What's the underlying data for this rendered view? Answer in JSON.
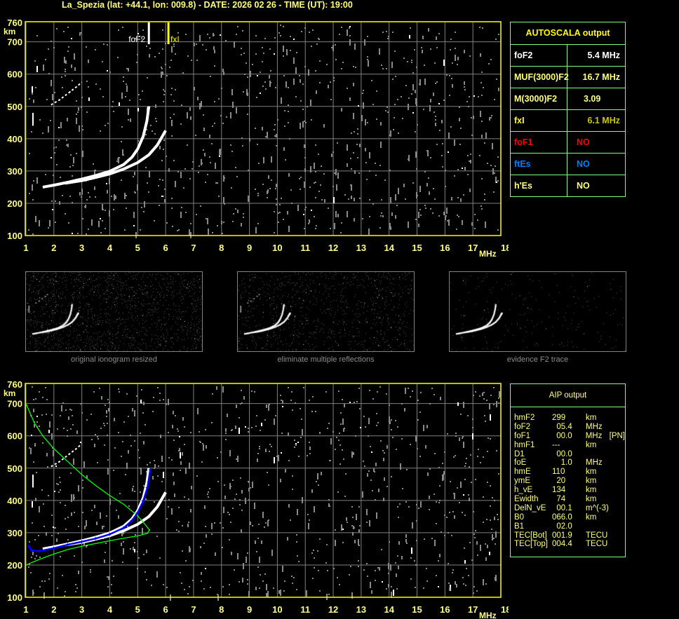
{
  "title": "La_Spezia (lat: +44.1, lon: 009.8) - DATE: 2026 02 26 - TIME (UT): 19:00",
  "colors": {
    "axis": "#ffff00",
    "grid": "#808080",
    "o_trace": "#ffffff",
    "fit": "#0000ff",
    "profile": "#00ff00",
    "panel_border": "#7fff7f",
    "label": "#ffff80",
    "red": "#ff0000",
    "blue": "#0080ff"
  },
  "autoscala": {
    "header": "AUTOSCALA output",
    "rows": [
      {
        "label": "foF2",
        "value": "5.4 MHz",
        "label_color": "#ffffff",
        "value_color": "#ffffff"
      },
      {
        "label": "MUF(3000)F2",
        "value": "16.7 MHz",
        "label_color": "#ffff80",
        "value_color": "#ffff80"
      },
      {
        "label": "M(3000)F2",
        "value": "3.09",
        "label_color": "#ffff80",
        "value_color": "#ffff80"
      },
      {
        "label": "fxI",
        "value": "6.1 MHz",
        "label_color": "#ffff00",
        "value_color": "#c8c800"
      },
      {
        "label": "foF1",
        "value": "NO",
        "label_color": "#ff0000",
        "value_color": "#ff0000"
      },
      {
        "label": "ftEs",
        "value": "NO",
        "label_color": "#0080ff",
        "value_color": "#0080ff"
      },
      {
        "label": "h'Es",
        "value": "NO",
        "label_color": "#ffff80",
        "value_color": "#ffff80"
      }
    ]
  },
  "aip": {
    "header": "AIP output",
    "rows": [
      [
        "hmF2",
        "299",
        "km",
        ""
      ],
      [
        "foF2",
        "  05.4",
        "MHz",
        ""
      ],
      [
        "foF1",
        "  00.0",
        "MHz",
        "[PN]"
      ],
      [
        "hmF1",
        "---",
        "km",
        ""
      ],
      [
        "D1",
        "  00.0",
        "",
        ""
      ],
      [
        "foE",
        "    1.0",
        "MHz",
        ""
      ],
      [
        "hmE",
        "110",
        "km",
        ""
      ],
      [
        "ymE",
        "  20",
        "km",
        ""
      ],
      [
        "h_vE",
        "134",
        "km",
        ""
      ],
      [
        "Ewidth",
        "  74",
        "km",
        ""
      ],
      [
        "DelN_vE",
        "  00.1",
        "m^(-3)",
        ""
      ],
      [
        "B0",
        "066.0",
        "km",
        ""
      ],
      [
        "B1",
        "  02.0",
        "",
        ""
      ],
      [
        "TEC[Bot]",
        "001.9",
        "TECU",
        ""
      ],
      [
        "TEC[Top]",
        "004.4",
        "TECU",
        ""
      ]
    ]
  },
  "thumbnails": [
    {
      "label": "original ionogram resized"
    },
    {
      "label": "eliminate multiple reflections"
    },
    {
      "label": "evidence F2 trace"
    }
  ],
  "chart_data": [
    {
      "type": "scatter",
      "name": "ionogram-autoscala",
      "xlabel": "MHz",
      "ylabel": "km",
      "xlim": [
        1,
        18
      ],
      "ylim": [
        100,
        760
      ],
      "xticks": [
        "1",
        "2",
        "3",
        "4",
        "5",
        "6",
        "7",
        "8",
        "9",
        "10",
        "11",
        "12",
        "13",
        "14",
        "15",
        "16",
        "17",
        "18"
      ],
      "yticks": [
        "100",
        "200",
        "300",
        "400",
        "500",
        "600",
        "700",
        "760"
      ],
      "grid": true,
      "markers": [
        {
          "label": "foF2",
          "x": 5.4,
          "color": "#ffffff"
        },
        {
          "label": "fxI",
          "x": 6.1,
          "color": "#ffff00"
        }
      ],
      "o_trace": [
        [
          1.6,
          250
        ],
        [
          2,
          256
        ],
        [
          2.5,
          265
        ],
        [
          3,
          275
        ],
        [
          3.5,
          286
        ],
        [
          4,
          299
        ],
        [
          4.5,
          320
        ],
        [
          4.8,
          343
        ],
        [
          5.0,
          368
        ],
        [
          5.2,
          408
        ],
        [
          5.33,
          455
        ],
        [
          5.4,
          500
        ]
      ],
      "x_trace": [
        [
          2.4,
          262
        ],
        [
          3,
          270
        ],
        [
          3.5,
          280
        ],
        [
          4,
          291
        ],
        [
          4.5,
          306
        ],
        [
          5,
          326
        ],
        [
          5.4,
          350
        ],
        [
          5.7,
          380
        ],
        [
          5.9,
          410
        ],
        [
          6.0,
          425
        ]
      ],
      "multiple_trace": [
        [
          1.9,
          505
        ],
        [
          2.2,
          520
        ],
        [
          2.5,
          540
        ],
        [
          2.8,
          560
        ],
        [
          3.0,
          575
        ]
      ]
    },
    {
      "type": "line",
      "name": "ionogram-aip",
      "xlabel": "MHz",
      "ylabel": "km",
      "xlim": [
        1,
        18
      ],
      "ylim": [
        100,
        760
      ],
      "xticks": [
        "1",
        "2",
        "3",
        "4",
        "5",
        "6",
        "7",
        "8",
        "9",
        "10",
        "11",
        "12",
        "13",
        "14",
        "15",
        "16",
        "17",
        "18"
      ],
      "yticks": [
        "100",
        "200",
        "300",
        "400",
        "500",
        "600",
        "700",
        "760"
      ],
      "grid": true,
      "o_trace": [
        [
          1.6,
          250
        ],
        [
          2,
          256
        ],
        [
          2.5,
          265
        ],
        [
          3,
          275
        ],
        [
          3.5,
          286
        ],
        [
          4,
          299
        ],
        [
          4.5,
          320
        ],
        [
          4.8,
          343
        ],
        [
          5.0,
          368
        ],
        [
          5.2,
          408
        ],
        [
          5.33,
          455
        ],
        [
          5.4,
          500
        ]
      ],
      "x_trace": [
        [
          2.4,
          262
        ],
        [
          3,
          270
        ],
        [
          3.5,
          280
        ],
        [
          4,
          291
        ],
        [
          4.5,
          306
        ],
        [
          5,
          326
        ],
        [
          5.4,
          350
        ],
        [
          5.7,
          380
        ],
        [
          5.9,
          410
        ],
        [
          6.0,
          425
        ]
      ],
      "multiple_trace": [
        [
          1.9,
          505
        ],
        [
          2.2,
          520
        ],
        [
          2.5,
          540
        ],
        [
          2.8,
          560
        ],
        [
          3.0,
          575
        ]
      ],
      "fitted_trace": [
        [
          1.1,
          258
        ],
        [
          1.2,
          245
        ],
        [
          1.5,
          243
        ],
        [
          2,
          252
        ],
        [
          2.5,
          263
        ],
        [
          3,
          272
        ],
        [
          3.5,
          282
        ],
        [
          4,
          295
        ],
        [
          4.5,
          315
        ],
        [
          4.8,
          338
        ],
        [
          5.0,
          362
        ],
        [
          5.2,
          398
        ],
        [
          5.35,
          440
        ],
        [
          5.45,
          495
        ]
      ],
      "profile": [
        [
          1.0,
          700
        ],
        [
          1.3,
          640
        ],
        [
          1.6,
          600
        ],
        [
          2,
          560
        ],
        [
          2.5,
          520
        ],
        [
          3,
          480
        ],
        [
          3.5,
          446
        ],
        [
          4,
          415
        ],
        [
          4.5,
          388
        ],
        [
          5,
          352
        ],
        [
          5.3,
          322
        ],
        [
          5.42,
          308
        ],
        [
          5.35,
          298
        ],
        [
          5.0,
          290
        ],
        [
          4.5,
          283
        ],
        [
          4,
          275
        ],
        [
          3,
          258
        ],
        [
          2.5,
          248
        ],
        [
          2,
          234
        ],
        [
          1.5,
          218
        ],
        [
          1.0,
          200
        ]
      ]
    }
  ]
}
